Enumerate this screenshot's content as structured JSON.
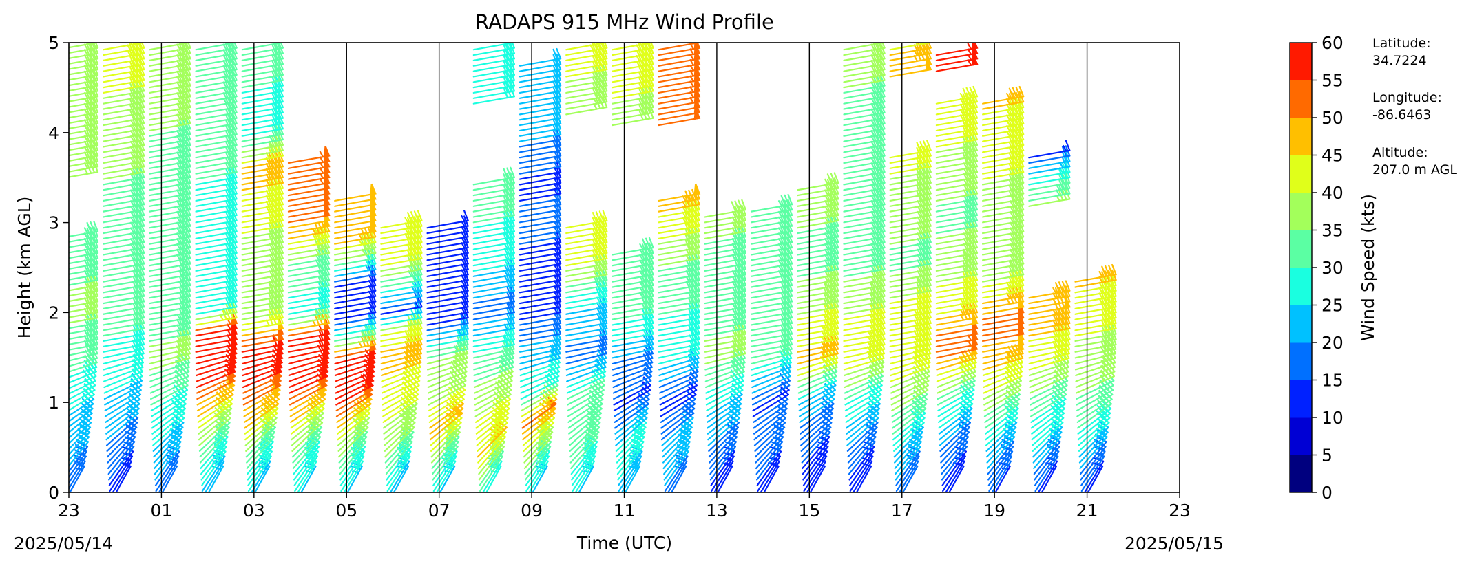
{
  "chart_data": {
    "type": "wind-barb-profile",
    "title": "RADAPS 915 MHz Wind Profile",
    "xlabel": "Time (UTC)",
    "ylabel": "Height (km AGL)",
    "xlim": [
      "2025-05-14T23:00Z",
      "2025-05-15T23:00Z"
    ],
    "ylim": [
      0,
      5
    ],
    "x_tick_labels": [
      "23",
      "01",
      "03",
      "05",
      "07",
      "09",
      "11",
      "13",
      "15",
      "17",
      "19",
      "21",
      "23"
    ],
    "y_tick_labels": [
      "0",
      "1",
      "2",
      "3",
      "4",
      "5"
    ],
    "date_left": "2025/05/14",
    "date_right": "2025/05/15",
    "colorbar": {
      "label": "Wind Speed (kts)",
      "ticks": [
        "0",
        "5",
        "10",
        "15",
        "20",
        "25",
        "30",
        "35",
        "40",
        "45",
        "50",
        "55",
        "60"
      ],
      "colors": [
        "#00007f",
        "#0000d4",
        "#0021ff",
        "#0070ff",
        "#00c1ff",
        "#1affe0",
        "#5bffa3",
        "#a3ff5b",
        "#e0ff1a",
        "#ffbf00",
        "#ff6a00",
        "#ff1a00",
        "#9e0000",
        "#7f0000"
      ]
    },
    "station_info": [
      {
        "label": "Latitude:",
        "value": "34.7224"
      },
      {
        "label": "Longitude:",
        "value": "-86.6463"
      },
      {
        "label": "Altitude:",
        "value": "207.0 m AGL"
      }
    ],
    "profile_times_utc": [
      "23:30",
      "00:30",
      "01:30",
      "02:30",
      "03:30",
      "04:30",
      "05:30",
      "06:30",
      "07:30",
      "08:30",
      "09:30",
      "10:30",
      "11:30",
      "12:30",
      "13:30",
      "14:30",
      "15:30",
      "16:30",
      "17:30",
      "18:30",
      "19:30",
      "20:30",
      "21:30"
    ],
    "profiles": [
      {
        "time": "23:30",
        "top_km": 5.0,
        "gaps": [
          [
            2.9,
            3.5
          ]
        ],
        "speeds": [
          [
            0,
            17
          ],
          [
            0.5,
            22
          ],
          [
            1.0,
            26
          ],
          [
            1.5,
            32
          ],
          [
            2.0,
            36
          ],
          [
            2.9,
            33
          ],
          [
            3.5,
            36
          ],
          [
            5.0,
            37
          ]
        ]
      },
      {
        "time": "00:30",
        "top_km": 5.0,
        "gaps": [],
        "speeds": [
          [
            0,
            12
          ],
          [
            0.5,
            18
          ],
          [
            1.0,
            24
          ],
          [
            1.5,
            28
          ],
          [
            2.0,
            32
          ],
          [
            3.0,
            33
          ],
          [
            4.0,
            37
          ],
          [
            5.0,
            44
          ]
        ]
      },
      {
        "time": "01:30",
        "top_km": 5.0,
        "gaps": [],
        "speeds": [
          [
            0,
            17
          ],
          [
            0.5,
            24
          ],
          [
            1.0,
            30
          ],
          [
            1.5,
            37
          ],
          [
            2.0,
            32
          ],
          [
            3.0,
            33
          ],
          [
            4.0,
            35
          ],
          [
            5.0,
            36
          ]
        ]
      },
      {
        "time": "02:30",
        "top_km": 5.0,
        "gaps": [],
        "speeds": [
          [
            0,
            20
          ],
          [
            0.5,
            32
          ],
          [
            0.9,
            44
          ],
          [
            1.2,
            55
          ],
          [
            1.8,
            57
          ],
          [
            2.0,
            28
          ],
          [
            3.0,
            28
          ],
          [
            4.0,
            32
          ],
          [
            5.0,
            34
          ]
        ]
      },
      {
        "time": "03:30",
        "top_km": 5.0,
        "gaps": [],
        "speeds": [
          [
            0,
            22
          ],
          [
            0.5,
            33
          ],
          [
            0.8,
            45
          ],
          [
            1.2,
            55
          ],
          [
            1.6,
            58
          ],
          [
            1.9,
            40
          ],
          [
            2.5,
            35
          ],
          [
            3.2,
            44
          ],
          [
            3.6,
            47
          ],
          [
            4.0,
            28
          ],
          [
            5.0,
            32
          ]
        ]
      },
      {
        "time": "04:30",
        "top_km": 3.7,
        "gaps": [],
        "speeds": [
          [
            0,
            24
          ],
          [
            0.5,
            33
          ],
          [
            0.8,
            44
          ],
          [
            1.2,
            56
          ],
          [
            1.7,
            59
          ],
          [
            2.0,
            28
          ],
          [
            2.5,
            33
          ],
          [
            3.0,
            51
          ],
          [
            3.7,
            54
          ]
        ]
      },
      {
        "time": "05:30",
        "top_km": 3.3,
        "gaps": [],
        "speeds": [
          [
            0,
            24
          ],
          [
            0.5,
            35
          ],
          [
            0.8,
            45
          ],
          [
            1.1,
            58
          ],
          [
            1.5,
            55
          ],
          [
            1.9,
            14
          ],
          [
            2.3,
            14
          ],
          [
            2.8,
            48
          ],
          [
            3.3,
            48
          ]
        ]
      },
      {
        "time": "06:30",
        "top_km": 3.0,
        "gaps": [],
        "speeds": [
          [
            0,
            22
          ],
          [
            0.5,
            35
          ],
          [
            1.0,
            42
          ],
          [
            1.5,
            47
          ],
          [
            1.8,
            42
          ],
          [
            2.0,
            14
          ],
          [
            2.5,
            40
          ],
          [
            3.0,
            45
          ]
        ]
      },
      {
        "time": "07:30",
        "top_km": 3.0,
        "gaps": [],
        "speeds": [
          [
            0,
            24
          ],
          [
            0.4,
            35
          ],
          [
            0.7,
            48
          ],
          [
            1.0,
            40
          ],
          [
            1.5,
            36
          ],
          [
            1.9,
            14
          ],
          [
            2.5,
            14
          ],
          [
            3.0,
            14
          ]
        ]
      },
      {
        "time": "08:30",
        "top_km": 5.0,
        "gaps": [
          [
            3.5,
            4.3
          ]
        ],
        "speeds": [
          [
            0,
            24
          ],
          [
            0.5,
            46
          ],
          [
            0.9,
            40
          ],
          [
            1.5,
            32
          ],
          [
            2.0,
            17
          ],
          [
            2.5,
            26
          ],
          [
            3.0,
            30
          ],
          [
            3.5,
            30
          ],
          [
            4.3,
            28
          ],
          [
            5.0,
            28
          ]
        ]
      },
      {
        "time": "09:30",
        "top_km": 4.8,
        "gaps": [],
        "speeds": [
          [
            0,
            22
          ],
          [
            0.6,
            42
          ],
          [
            0.8,
            52
          ],
          [
            1.1,
            28
          ],
          [
            1.5,
            24
          ],
          [
            2.0,
            14
          ],
          [
            2.5,
            14
          ],
          [
            3.0,
            16
          ],
          [
            3.5,
            14
          ],
          [
            4.0,
            22
          ],
          [
            4.8,
            22
          ]
        ]
      },
      {
        "time": "10:30",
        "top_km": 5.0,
        "gaps": [
          [
            3.0,
            4.2
          ]
        ],
        "speeds": [
          [
            0,
            24
          ],
          [
            0.5,
            32
          ],
          [
            1.0,
            34
          ],
          [
            1.5,
            18
          ],
          [
            2.0,
            24
          ],
          [
            2.6,
            42
          ],
          [
            3.0,
            42
          ],
          [
            4.2,
            36
          ],
          [
            5.0,
            44
          ]
        ]
      },
      {
        "time": "11:30",
        "top_km": 5.0,
        "gaps": [
          [
            2.7,
            4.1
          ]
        ],
        "speeds": [
          [
            0,
            22
          ],
          [
            0.5,
            28
          ],
          [
            1.0,
            14
          ],
          [
            1.5,
            20
          ],
          [
            2.0,
            32
          ],
          [
            2.7,
            35
          ],
          [
            4.1,
            38
          ],
          [
            5.0,
            45
          ]
        ]
      },
      {
        "time": "12:30",
        "top_km": 5.0,
        "gaps": [
          [
            3.3,
            4.1
          ]
        ],
        "speeds": [
          [
            0,
            18
          ],
          [
            0.5,
            24
          ],
          [
            1.0,
            12
          ],
          [
            1.5,
            26
          ],
          [
            2.0,
            30
          ],
          [
            2.5,
            35
          ],
          [
            3.3,
            48
          ],
          [
            4.1,
            52
          ],
          [
            5.0,
            55
          ]
        ]
      },
      {
        "time": "13:30",
        "top_km": 3.1,
        "gaps": [],
        "speeds": [
          [
            0,
            12
          ],
          [
            0.5,
            18
          ],
          [
            1.0,
            26
          ],
          [
            1.5,
            36
          ],
          [
            2.0,
            34
          ],
          [
            2.5,
            32
          ],
          [
            3.1,
            38
          ]
        ]
      },
      {
        "time": "14:30",
        "top_km": 3.2,
        "gaps": [],
        "speeds": [
          [
            0,
            12
          ],
          [
            0.5,
            18
          ],
          [
            1.0,
            14
          ],
          [
            1.5,
            32
          ],
          [
            2.0,
            30
          ],
          [
            2.5,
            34
          ],
          [
            3.2,
            34
          ]
        ]
      },
      {
        "time": "15:30",
        "top_km": 3.4,
        "gaps": [],
        "speeds": [
          [
            0,
            10
          ],
          [
            0.5,
            16
          ],
          [
            1.0,
            22
          ],
          [
            1.5,
            48
          ],
          [
            1.8,
            42
          ],
          [
            2.5,
            34
          ],
          [
            3.4,
            36
          ]
        ]
      },
      {
        "time": "16:30",
        "top_km": 5.0,
        "gaps": [],
        "speeds": [
          [
            0,
            10
          ],
          [
            0.5,
            18
          ],
          [
            1.0,
            28
          ],
          [
            1.5,
            44
          ],
          [
            1.8,
            42
          ],
          [
            2.5,
            34
          ],
          [
            3.5,
            33
          ],
          [
            5.0,
            36
          ]
        ]
      },
      {
        "time": "17:30",
        "top_km": 5.0,
        "gaps": [
          [
            3.8,
            4.6
          ]
        ],
        "speeds": [
          [
            0,
            16
          ],
          [
            0.5,
            24
          ],
          [
            1.0,
            36
          ],
          [
            1.5,
            44
          ],
          [
            1.9,
            44
          ],
          [
            2.5,
            34
          ],
          [
            3.0,
            36
          ],
          [
            3.8,
            42
          ],
          [
            4.6,
            50
          ],
          [
            5.0,
            44
          ]
        ]
      },
      {
        "time": "18:30",
        "top_km": 4.9,
        "gaps": [
          [
            4.4,
            4.7
          ]
        ],
        "speeds": [
          [
            0,
            12
          ],
          [
            0.5,
            18
          ],
          [
            1.0,
            30
          ],
          [
            1.6,
            55
          ],
          [
            2.0,
            44
          ],
          [
            2.5,
            38
          ],
          [
            3.0,
            34
          ],
          [
            3.5,
            36
          ],
          [
            4.0,
            42
          ],
          [
            4.4,
            44
          ],
          [
            4.7,
            56
          ],
          [
            4.9,
            56
          ]
        ]
      },
      {
        "time": "19:30",
        "top_km": 4.4,
        "gaps": [],
        "speeds": [
          [
            0,
            14
          ],
          [
            0.5,
            22
          ],
          [
            1.0,
            36
          ],
          [
            1.5,
            48
          ],
          [
            1.9,
            52
          ],
          [
            2.5,
            36
          ],
          [
            3.0,
            36
          ],
          [
            3.5,
            40
          ],
          [
            4.4,
            46
          ]
        ]
      },
      {
        "time": "20:30",
        "top_km": 3.8,
        "gaps": [
          [
            2.2,
            3.2
          ]
        ],
        "speeds": [
          [
            0,
            12
          ],
          [
            0.5,
            24
          ],
          [
            1.0,
            32
          ],
          [
            1.5,
            42
          ],
          [
            2.0,
            48
          ],
          [
            2.2,
            46
          ],
          [
            3.2,
            36
          ],
          [
            3.5,
            28
          ],
          [
            3.8,
            12
          ]
        ]
      },
      {
        "time": "21:30",
        "top_km": 2.4,
        "gaps": [],
        "speeds": [
          [
            0,
            12
          ],
          [
            0.5,
            24
          ],
          [
            1.0,
            34
          ],
          [
            1.5,
            38
          ],
          [
            2.0,
            42
          ],
          [
            2.4,
            46
          ]
        ]
      }
    ]
  }
}
